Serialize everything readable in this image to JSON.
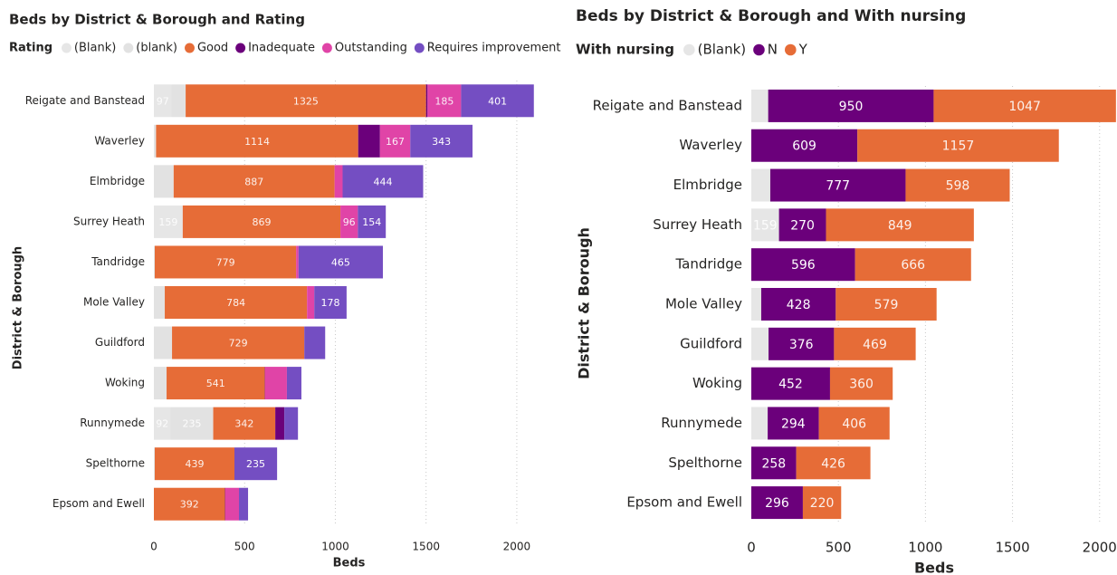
{
  "chart_data": [
    {
      "type": "bar",
      "orientation": "horizontal",
      "stacked": true,
      "title": "Beds by District & Borough and Rating",
      "legend_title": "Rating",
      "xlabel": "Beds",
      "ylabel": "District & Borough",
      "categories": [
        "Reigate and Banstead",
        "Waverley",
        "Elmbridge",
        "Surrey Heath",
        "Tandridge",
        "Mole Valley",
        "Guildford",
        "Woking",
        "Runnymede",
        "Spelthorne",
        "Epsom and Ewell"
      ],
      "series": [
        {
          "name": "(Blank)",
          "color": "#e6e6e6",
          "values": [
            97,
            0,
            0,
            159,
            0,
            0,
            0,
            0,
            92,
            0,
            0
          ],
          "value_labels": [
            "97",
            null,
            null,
            "159",
            null,
            null,
            null,
            null,
            "92",
            null,
            null
          ]
        },
        {
          "name": "(blank)",
          "color": "#e2e2e2",
          "values": [
            78,
            12,
            109,
            0,
            5,
            60,
            100,
            70,
            235,
            5,
            0
          ],
          "value_labels": [
            null,
            null,
            null,
            null,
            null,
            null,
            null,
            null,
            "235",
            null,
            null
          ]
        },
        {
          "name": "Good",
          "color": "#e66c37",
          "values": [
            1325,
            1114,
            887,
            869,
            779,
            784,
            729,
            541,
            342,
            439,
            392
          ],
          "value_labels": [
            "1325",
            "1114",
            "887",
            "869",
            "779",
            "784",
            "729",
            "541",
            "342",
            "439",
            "392"
          ]
        },
        {
          "name": "Inadequate",
          "color": "#6b007b",
          "values": [
            8,
            120,
            0,
            0,
            0,
            0,
            0,
            2,
            50,
            0,
            2
          ],
          "value_labels": [
            null,
            null,
            null,
            null,
            null,
            null,
            null,
            null,
            null,
            null,
            null
          ]
        },
        {
          "name": "Outstanding",
          "color": "#e044a7",
          "values": [
            185,
            167,
            44,
            96,
            13,
            40,
            0,
            120,
            0,
            0,
            75
          ],
          "value_labels": [
            "185",
            "167",
            null,
            "96",
            null,
            null,
            null,
            null,
            null,
            null,
            null
          ]
        },
        {
          "name": "Requires improvement",
          "color": "#744ec2",
          "values": [
            401,
            343,
            444,
            154,
            465,
            178,
            115,
            80,
            75,
            235,
            50
          ],
          "value_labels": [
            "401",
            "343",
            "444",
            "154",
            "465",
            "178",
            null,
            null,
            null,
            "235",
            null
          ]
        }
      ],
      "xlim": [
        0,
        2150
      ],
      "xticks": [
        0,
        500,
        1000,
        1500,
        2000
      ],
      "grid": true
    },
    {
      "type": "bar",
      "orientation": "horizontal",
      "stacked": true,
      "title": "Beds by District & Borough and With nursing",
      "legend_title": "With nursing",
      "xlabel": "Beds",
      "ylabel": "District & Borough",
      "categories": [
        "Reigate and Banstead",
        "Waverley",
        "Elmbridge",
        "Surrey Heath",
        "Tandridge",
        "Mole Valley",
        "Guildford",
        "Woking",
        "Runnymede",
        "Spelthorne",
        "Epsom and Ewell"
      ],
      "series": [
        {
          "name": "(Blank)",
          "color": "#e6e6e6",
          "values": [
            97,
            0,
            109,
            159,
            0,
            57,
            99,
            0,
            94,
            0,
            0
          ],
          "value_labels": [
            null,
            null,
            null,
            "159",
            null,
            null,
            null,
            null,
            null,
            null,
            null
          ]
        },
        {
          "name": "N",
          "color": "#6b007b",
          "values": [
            950,
            609,
            777,
            270,
            596,
            428,
            376,
            452,
            294,
            258,
            296
          ],
          "value_labels": [
            "950",
            "609",
            "777",
            "270",
            "596",
            "428",
            "376",
            "452",
            "294",
            "258",
            "296"
          ]
        },
        {
          "name": "Y",
          "color": "#e66c37",
          "values": [
            1047,
            1157,
            598,
            849,
            666,
            579,
            469,
            360,
            406,
            426,
            220
          ],
          "value_labels": [
            "1047",
            "1157",
            "598",
            "849",
            "666",
            "579",
            "469",
            "360",
            "406",
            "426",
            "220"
          ]
        }
      ],
      "xlim": [
        0,
        2100
      ],
      "xticks": [
        0,
        500,
        1000,
        1500,
        2000
      ],
      "grid": true
    }
  ]
}
